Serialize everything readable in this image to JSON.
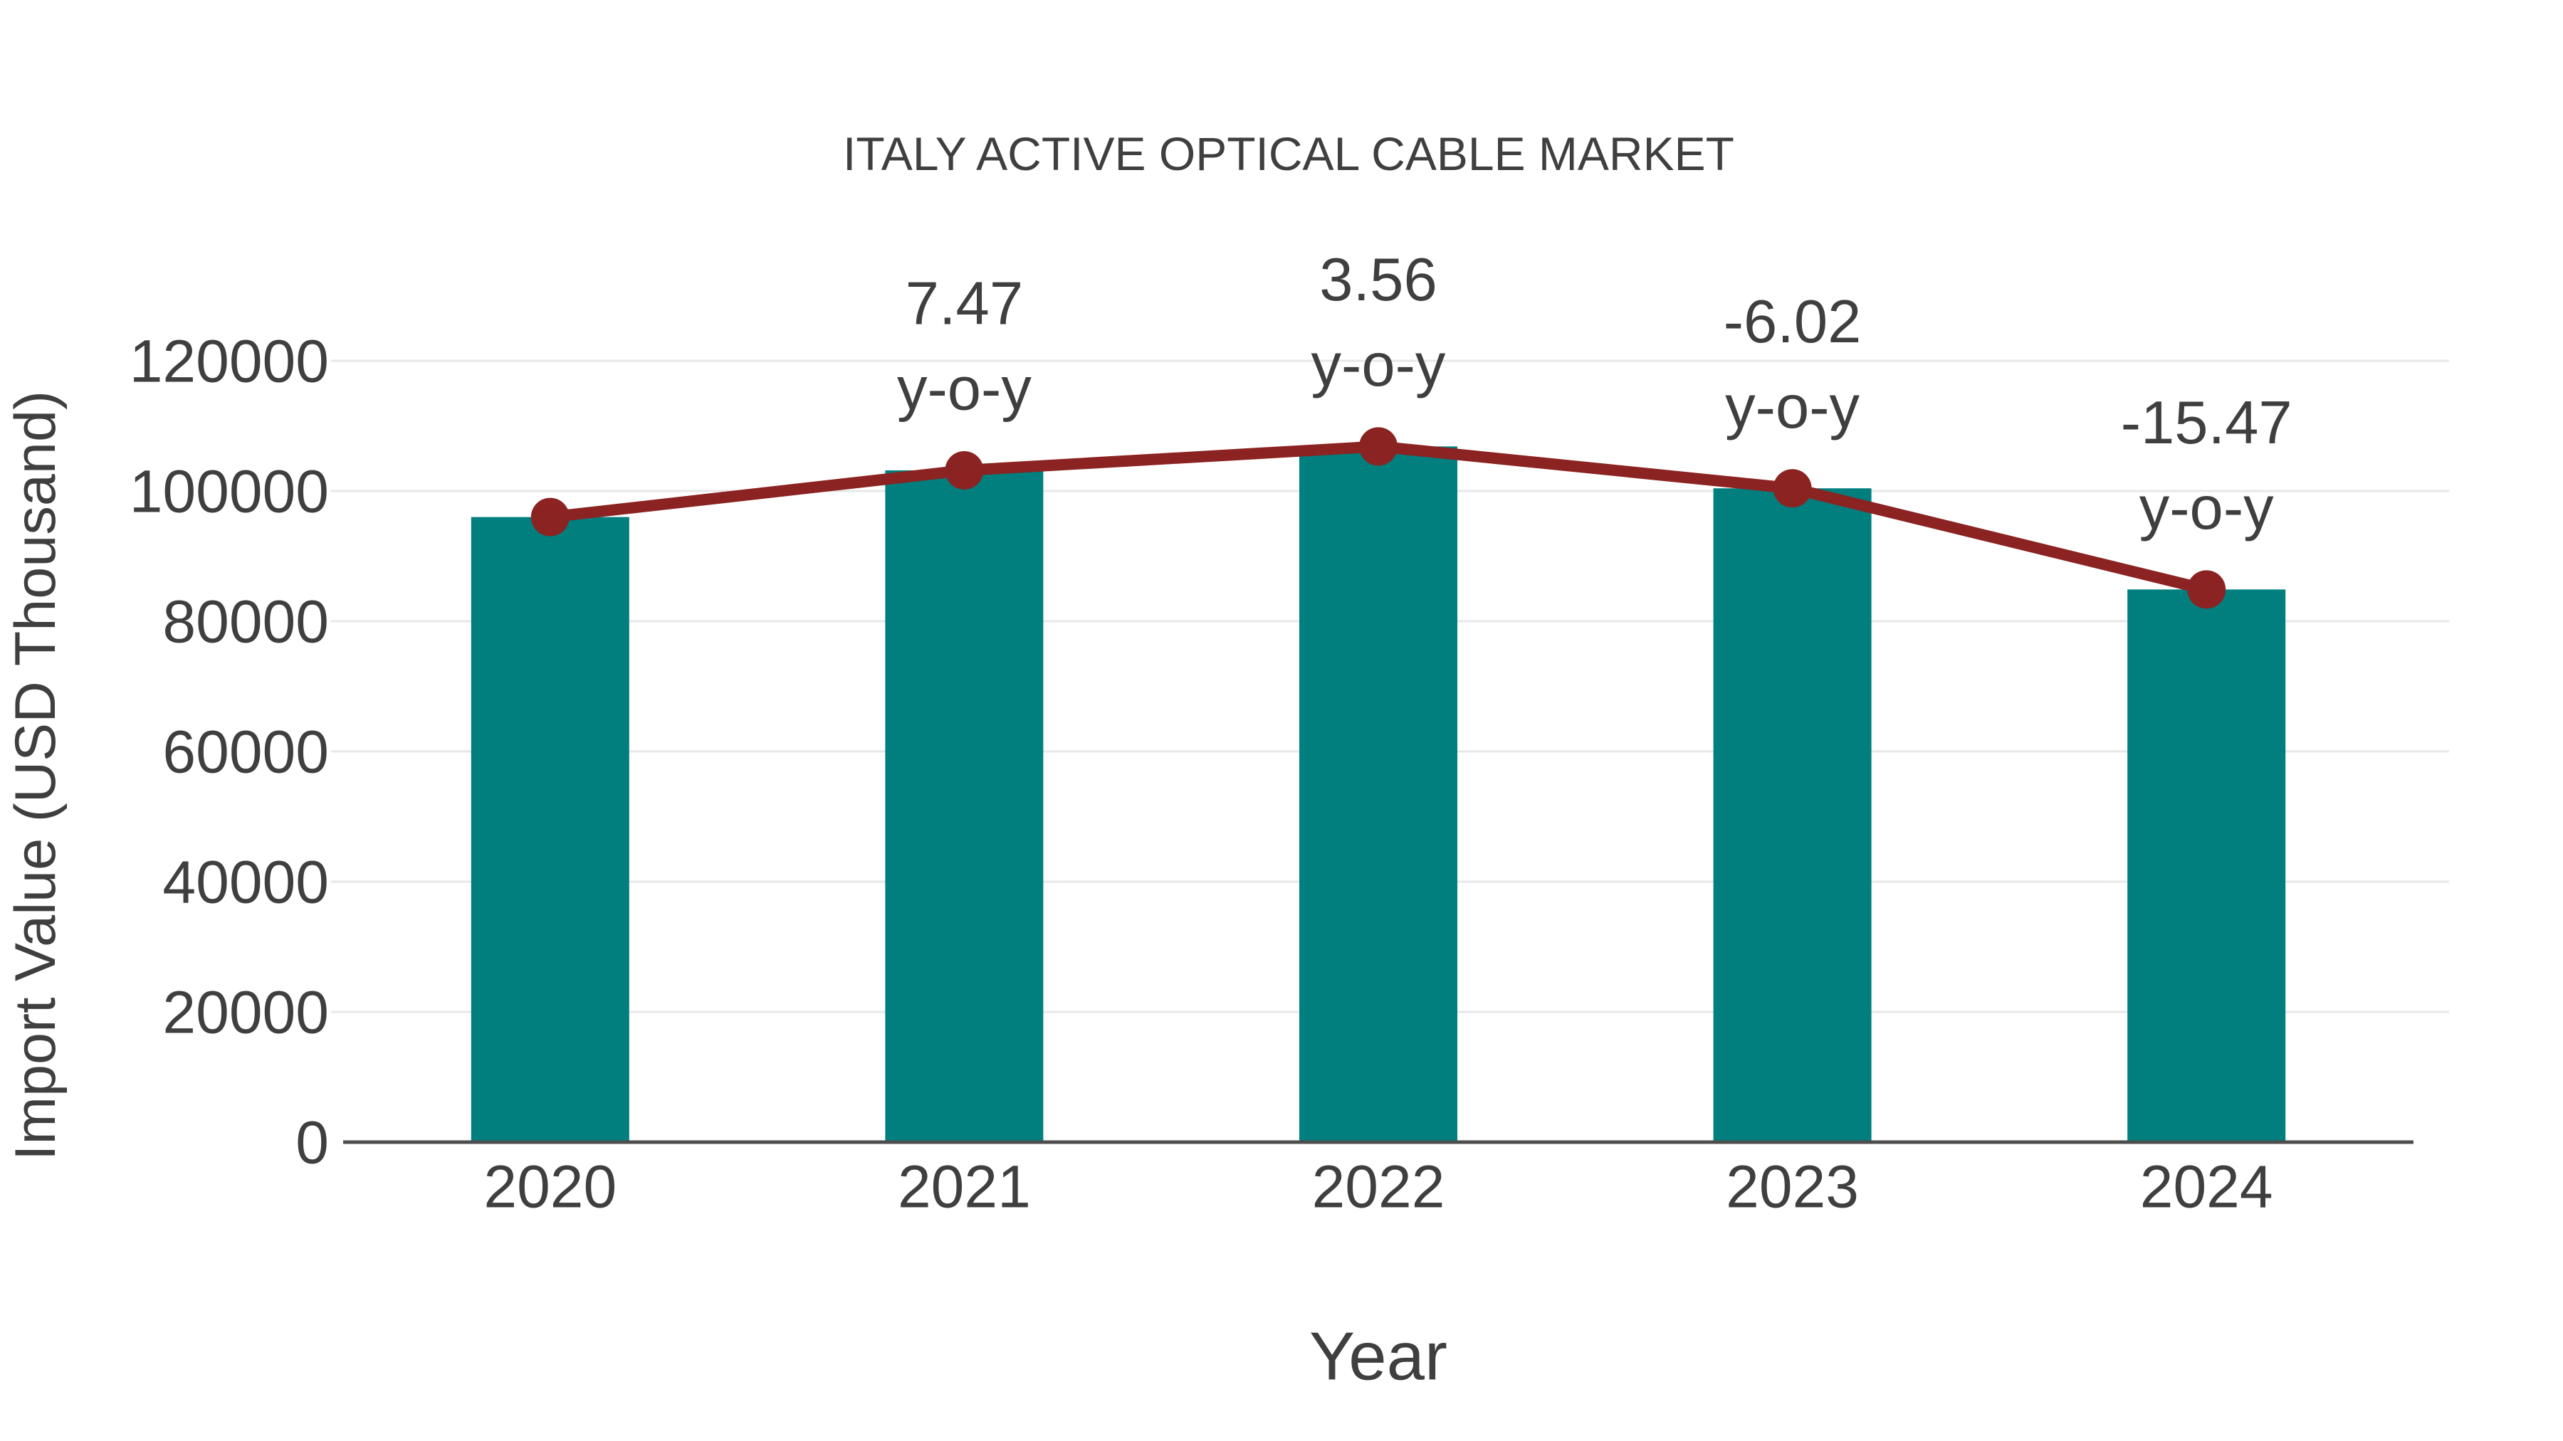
{
  "colors": {
    "bar": "#007f7e",
    "line": "#8b2322",
    "marker": "#8b2322",
    "text": "#3f3f3f",
    "grid": "#e7e7e7",
    "axis": "#4d4d4d",
    "background": "#ffffff"
  },
  "chart_data": {
    "type": "bar",
    "overlay": "line",
    "title": "ITALY ACTIVE OPTICAL CABLE MARKET",
    "xlabel": "Year",
    "ylabel": "Import Value (USD Thousand)",
    "categories": [
      "2020",
      "2021",
      "2022",
      "2023",
      "2024"
    ],
    "series": [
      {
        "name": "Import Value (USD Thousand)",
        "type": "bar",
        "values": [
          96000,
          103171,
          106844,
          100412,
          84878
        ]
      },
      {
        "name": "y-o-y trend line",
        "type": "line",
        "values": [
          96000,
          103171,
          106844,
          100412,
          84878
        ]
      }
    ],
    "annotations": [
      {
        "category": "2021",
        "lines": [
          "7.47",
          "y-o-y"
        ]
      },
      {
        "category": "2022",
        "lines": [
          "3.56",
          "y-o-y"
        ]
      },
      {
        "category": "2023",
        "lines": [
          "-6.02",
          "y-o-y"
        ]
      },
      {
        "category": "2024",
        "lines": [
          "-15.47",
          "y-o-y"
        ]
      }
    ],
    "yticks": [
      0,
      20000,
      40000,
      60000,
      80000,
      100000,
      120000
    ],
    "ylim": [
      0,
      120000
    ],
    "grid": true,
    "legend": false
  }
}
